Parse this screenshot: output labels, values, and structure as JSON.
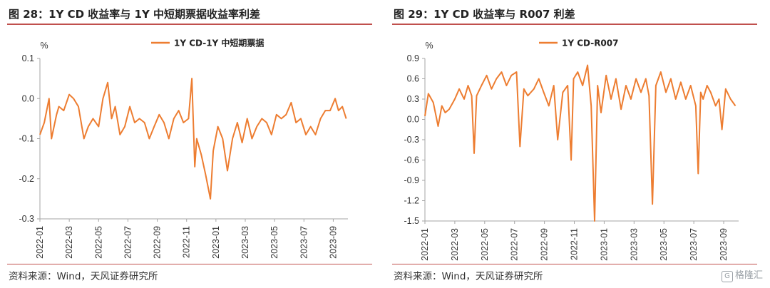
{
  "figures": [
    {
      "title": "图 28：1Y CD 收益率与 1Y 中短期票据收益率利差",
      "source": "资料来源：Wind，天风证券研究所"
    },
    {
      "title": "图 29：1Y CD 收益率与 R007 利差",
      "source": "资料来源：Wind，天风证券研究所"
    }
  ],
  "watermark": "格隆汇",
  "chart_data": [
    {
      "type": "line",
      "unit_label": "%",
      "legend_position": "top-center",
      "grid": false,
      "ylim": [
        -0.3,
        0.1
      ],
      "yticks": [
        0.1,
        0.0,
        -0.1,
        -0.2,
        -0.3
      ],
      "ytick_labels": [
        "0.1",
        "0.0",
        "-0.1",
        "-0.2",
        "-0.3"
      ],
      "xlim": [
        "2022-01",
        "2023-10"
      ],
      "xticks": [
        "2022-01",
        "2022-03",
        "2022-05",
        "2022-07",
        "2022-09",
        "2022-11",
        "2023-01",
        "2023-03",
        "2023-05",
        "2023-07",
        "2023-09"
      ],
      "color": "#ED7D31",
      "series": [
        {
          "name": "1Y CD-1Y 中短期票据",
          "x": [
            "2022-01-01",
            "2022-01-10",
            "2022-01-20",
            "2022-01-25",
            "2022-02-05",
            "2022-02-10",
            "2022-02-20",
            "2022-03-01",
            "2022-03-10",
            "2022-03-20",
            "2022-04-01",
            "2022-04-10",
            "2022-04-20",
            "2022-05-01",
            "2022-05-10",
            "2022-05-20",
            "2022-05-28",
            "2022-06-05",
            "2022-06-15",
            "2022-06-25",
            "2022-07-05",
            "2022-07-15",
            "2022-07-25",
            "2022-08-05",
            "2022-08-15",
            "2022-08-25",
            "2022-09-05",
            "2022-09-15",
            "2022-09-25",
            "2022-10-05",
            "2022-10-15",
            "2022-10-25",
            "2022-11-05",
            "2022-11-12",
            "2022-11-18",
            "2022-11-22",
            "2022-12-01",
            "2022-12-10",
            "2022-12-20",
            "2022-12-26",
            "2023-01-05",
            "2023-01-15",
            "2023-01-25",
            "2023-02-05",
            "2023-02-15",
            "2023-02-25",
            "2023-03-05",
            "2023-03-15",
            "2023-03-25",
            "2023-04-05",
            "2023-04-15",
            "2023-04-25",
            "2023-05-05",
            "2023-05-15",
            "2023-05-25",
            "2023-06-05",
            "2023-06-15",
            "2023-06-25",
            "2023-07-05",
            "2023-07-15",
            "2023-07-25",
            "2023-08-05",
            "2023-08-15",
            "2023-08-25",
            "2023-09-05",
            "2023-09-12",
            "2023-09-20",
            "2023-09-28"
          ],
          "values": [
            -0.09,
            -0.06,
            0.0,
            -0.1,
            -0.04,
            -0.02,
            -0.03,
            0.01,
            0.0,
            -0.02,
            -0.1,
            -0.07,
            -0.05,
            -0.07,
            0.0,
            0.04,
            -0.05,
            -0.02,
            -0.09,
            -0.07,
            -0.02,
            -0.06,
            -0.05,
            -0.06,
            -0.1,
            -0.07,
            -0.04,
            -0.06,
            -0.1,
            -0.05,
            -0.03,
            -0.06,
            -0.05,
            0.05,
            -0.17,
            -0.1,
            -0.14,
            -0.19,
            -0.25,
            -0.13,
            -0.07,
            -0.1,
            -0.18,
            -0.1,
            -0.06,
            -0.11,
            -0.05,
            -0.1,
            -0.07,
            -0.05,
            -0.06,
            -0.09,
            -0.04,
            -0.05,
            -0.04,
            -0.01,
            -0.06,
            -0.05,
            -0.09,
            -0.07,
            -0.09,
            -0.05,
            -0.03,
            -0.03,
            0.0,
            -0.03,
            -0.02,
            -0.05
          ]
        }
      ]
    },
    {
      "type": "line",
      "unit_label": "%",
      "legend_position": "top-center",
      "grid": false,
      "ylim": [
        -1.5,
        0.9
      ],
      "yticks": [
        0.9,
        0.6,
        0.3,
        0.0,
        -0.3,
        -0.6,
        -0.9,
        -1.2,
        -1.5
      ],
      "ytick_labels": [
        "0.9",
        "0.6",
        "0.3",
        "0.0",
        "-0.3",
        "-0.6",
        "-0.9",
        "-1.2",
        "-1.5"
      ],
      "xlim": [
        "2022-01",
        "2023-10"
      ],
      "xticks": [
        "2022-01",
        "2022-03",
        "2022-05",
        "2022-07",
        "2022-09",
        "2022-11",
        "2023-01",
        "2023-03",
        "2023-05",
        "2023-07",
        "2023-09"
      ],
      "color": "#ED7D31",
      "series": [
        {
          "name": "1Y CD-R007",
          "x": [
            "2022-01-01",
            "2022-01-08",
            "2022-01-18",
            "2022-01-28",
            "2022-02-05",
            "2022-02-12",
            "2022-02-20",
            "2022-03-01",
            "2022-03-10",
            "2022-03-20",
            "2022-03-28",
            "2022-04-05",
            "2022-04-10",
            "2022-04-15",
            "2022-04-25",
            "2022-05-05",
            "2022-05-15",
            "2022-05-25",
            "2022-06-05",
            "2022-06-15",
            "2022-06-25",
            "2022-07-05",
            "2022-07-12",
            "2022-07-20",
            "2022-07-28",
            "2022-08-10",
            "2022-08-20",
            "2022-08-30",
            "2022-09-10",
            "2022-09-20",
            "2022-09-28",
            "2022-10-08",
            "2022-10-18",
            "2022-10-25",
            "2022-10-30",
            "2022-11-08",
            "2022-11-18",
            "2022-11-28",
            "2022-12-05",
            "2022-12-12",
            "2022-12-18",
            "2022-12-25",
            "2023-01-05",
            "2023-01-15",
            "2023-01-25",
            "2023-02-05",
            "2023-02-15",
            "2023-02-25",
            "2023-03-05",
            "2023-03-15",
            "2023-03-25",
            "2023-04-01",
            "2023-04-08",
            "2023-04-15",
            "2023-04-25",
            "2023-05-05",
            "2023-05-15",
            "2023-05-25",
            "2023-06-05",
            "2023-06-15",
            "2023-06-25",
            "2023-07-05",
            "2023-07-10",
            "2023-07-15",
            "2023-07-20",
            "2023-07-28",
            "2023-08-05",
            "2023-08-15",
            "2023-08-22",
            "2023-08-28",
            "2023-09-05",
            "2023-09-15",
            "2023-09-25"
          ],
          "values": [
            0.05,
            0.38,
            0.25,
            -0.1,
            0.2,
            0.1,
            0.15,
            0.3,
            0.45,
            0.3,
            0.5,
            0.35,
            -0.5,
            0.35,
            0.5,
            0.65,
            0.45,
            0.6,
            0.7,
            0.5,
            0.65,
            0.7,
            -0.4,
            0.45,
            0.35,
            0.45,
            0.6,
            0.4,
            0.2,
            0.5,
            -0.3,
            0.4,
            0.5,
            -0.6,
            0.6,
            0.7,
            0.5,
            0.8,
            0.2,
            -1.5,
            0.5,
            0.1,
            0.65,
            0.3,
            0.6,
            0.15,
            0.5,
            0.3,
            0.6,
            0.4,
            0.6,
            0.35,
            -1.25,
            0.5,
            0.7,
            0.4,
            0.6,
            0.3,
            0.55,
            0.3,
            0.5,
            0.2,
            -0.8,
            0.4,
            0.3,
            0.5,
            0.4,
            0.2,
            0.3,
            -0.15,
            0.45,
            0.3,
            0.2
          ]
        }
      ]
    }
  ]
}
